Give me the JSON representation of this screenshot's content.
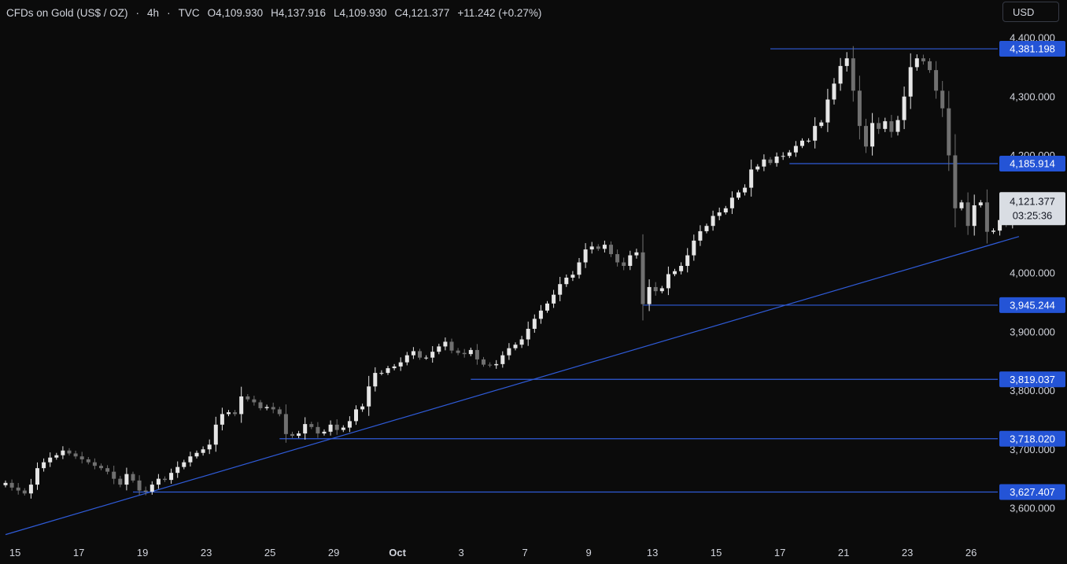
{
  "header": {
    "symbol": "CFDs on Gold (US$ / OZ)",
    "interval": "4h",
    "source": "TVC",
    "open": "O4,109.930",
    "high": "H4,137.916",
    "low": "L4,109.930",
    "close": "C4,121.377",
    "change": "+11.242 (+0.27%)"
  },
  "currency_button": "USD",
  "colors": {
    "background": "#0b0b0b",
    "candle_up": "#e6e6e6",
    "candle_down": "#707070",
    "line": "#2f5bd8",
    "label_bg": "#2454d6",
    "last_price_bg": "#d9dde3"
  },
  "chart_data": {
    "type": "candlestick",
    "y_range": [
      3550,
      4440
    ],
    "y_ticks": [
      3600,
      3700,
      3800,
      3900,
      4000,
      4100,
      4200,
      4300,
      4400
    ],
    "y_tick_labels": [
      "3,600.000",
      "3,700.000",
      "3,800.000",
      "3,900.000",
      "4,000.000",
      "4,100.000",
      "4,200.000",
      "4,300.000",
      "4,400.000"
    ],
    "x_ticks": [
      {
        "label": "15",
        "bar": 1
      },
      {
        "label": "17",
        "bar": 11
      },
      {
        "label": "19",
        "bar": 21
      },
      {
        "label": "23",
        "bar": 31
      },
      {
        "label": "25",
        "bar": 41
      },
      {
        "label": "29",
        "bar": 51
      },
      {
        "label": "Oct",
        "bar": 61
      },
      {
        "label": "3",
        "bar": 71
      },
      {
        "label": "7",
        "bar": 81
      },
      {
        "label": "9",
        "bar": 91
      },
      {
        "label": "13",
        "bar": 101
      },
      {
        "label": "15",
        "bar": 111
      },
      {
        "label": "17",
        "bar": 121
      },
      {
        "label": "21",
        "bar": 131
      },
      {
        "label": "23",
        "bar": 141
      },
      {
        "label": "26",
        "bar": 151
      }
    ],
    "closes": [
      3643,
      3635,
      3630,
      3625,
      3640,
      3668,
      3678,
      3686,
      3690,
      3698,
      3693,
      3688,
      3683,
      3678,
      3672,
      3668,
      3662,
      3650,
      3640,
      3658,
      3647,
      3630,
      3628,
      3640,
      3650,
      3648,
      3660,
      3670,
      3678,
      3688,
      3694,
      3700,
      3708,
      3742,
      3760,
      3763,
      3760,
      3790,
      3785,
      3780,
      3770,
      3772,
      3768,
      3760,
      3726,
      3723,
      3727,
      3743,
      3738,
      3727,
      3730,
      3742,
      3733,
      3737,
      3748,
      3768,
      3773,
      3807,
      3830,
      3830,
      3838,
      3841,
      3848,
      3860,
      3867,
      3856,
      3856,
      3866,
      3875,
      3883,
      3868,
      3864,
      3862,
      3869,
      3853,
      3844,
      3843,
      3845,
      3860,
      3872,
      3878,
      3887,
      3905,
      3922,
      3936,
      3948,
      3963,
      3981,
      3992,
      3997,
      4018,
      4040,
      4045,
      4041,
      4048,
      4032,
      4018,
      4012,
      4030,
      4035,
      3947,
      3976,
      3969,
      3974,
      3998,
      4003,
      4012,
      4030,
      4055,
      4071,
      4080,
      4097,
      4103,
      4110,
      4128,
      4137,
      4145,
      4176,
      4181,
      4193,
      4187,
      4198,
      4199,
      4205,
      4216,
      4225,
      4225,
      4250,
      4256,
      4295,
      4322,
      4352,
      4365,
      4310,
      4250,
      4215,
      4255,
      4245,
      4258,
      4240,
      4260,
      4300,
      4350,
      4365,
      4360,
      4345,
      4310,
      4280,
      4200,
      4110,
      4120,
      4080,
      4115,
      4120,
      4070,
      4072,
      4090,
      4085,
      4110,
      4121
    ],
    "levels": [
      {
        "price": 4381.198,
        "label": "4,381.198",
        "from_bar": 120
      },
      {
        "price": 4185.914,
        "label": "4,185.914",
        "from_bar": 123
      },
      {
        "price": 3945.244,
        "label": "3,945.244",
        "from_bar": 100
      },
      {
        "price": 3819.037,
        "label": "3,819.037",
        "from_bar": 73
      },
      {
        "price": 3718.02,
        "label": "3,718.020",
        "from_bar": 43
      },
      {
        "price": 3627.407,
        "label": "3,627.407",
        "from_bar": 20
      }
    ],
    "trendline": {
      "from": {
        "bar": 0,
        "price": 3555
      },
      "to": {
        "bar": 159,
        "price": 4062
      }
    },
    "last_price": {
      "price": 4121.377,
      "label": "4,121.377",
      "countdown": "03:25:36"
    }
  }
}
